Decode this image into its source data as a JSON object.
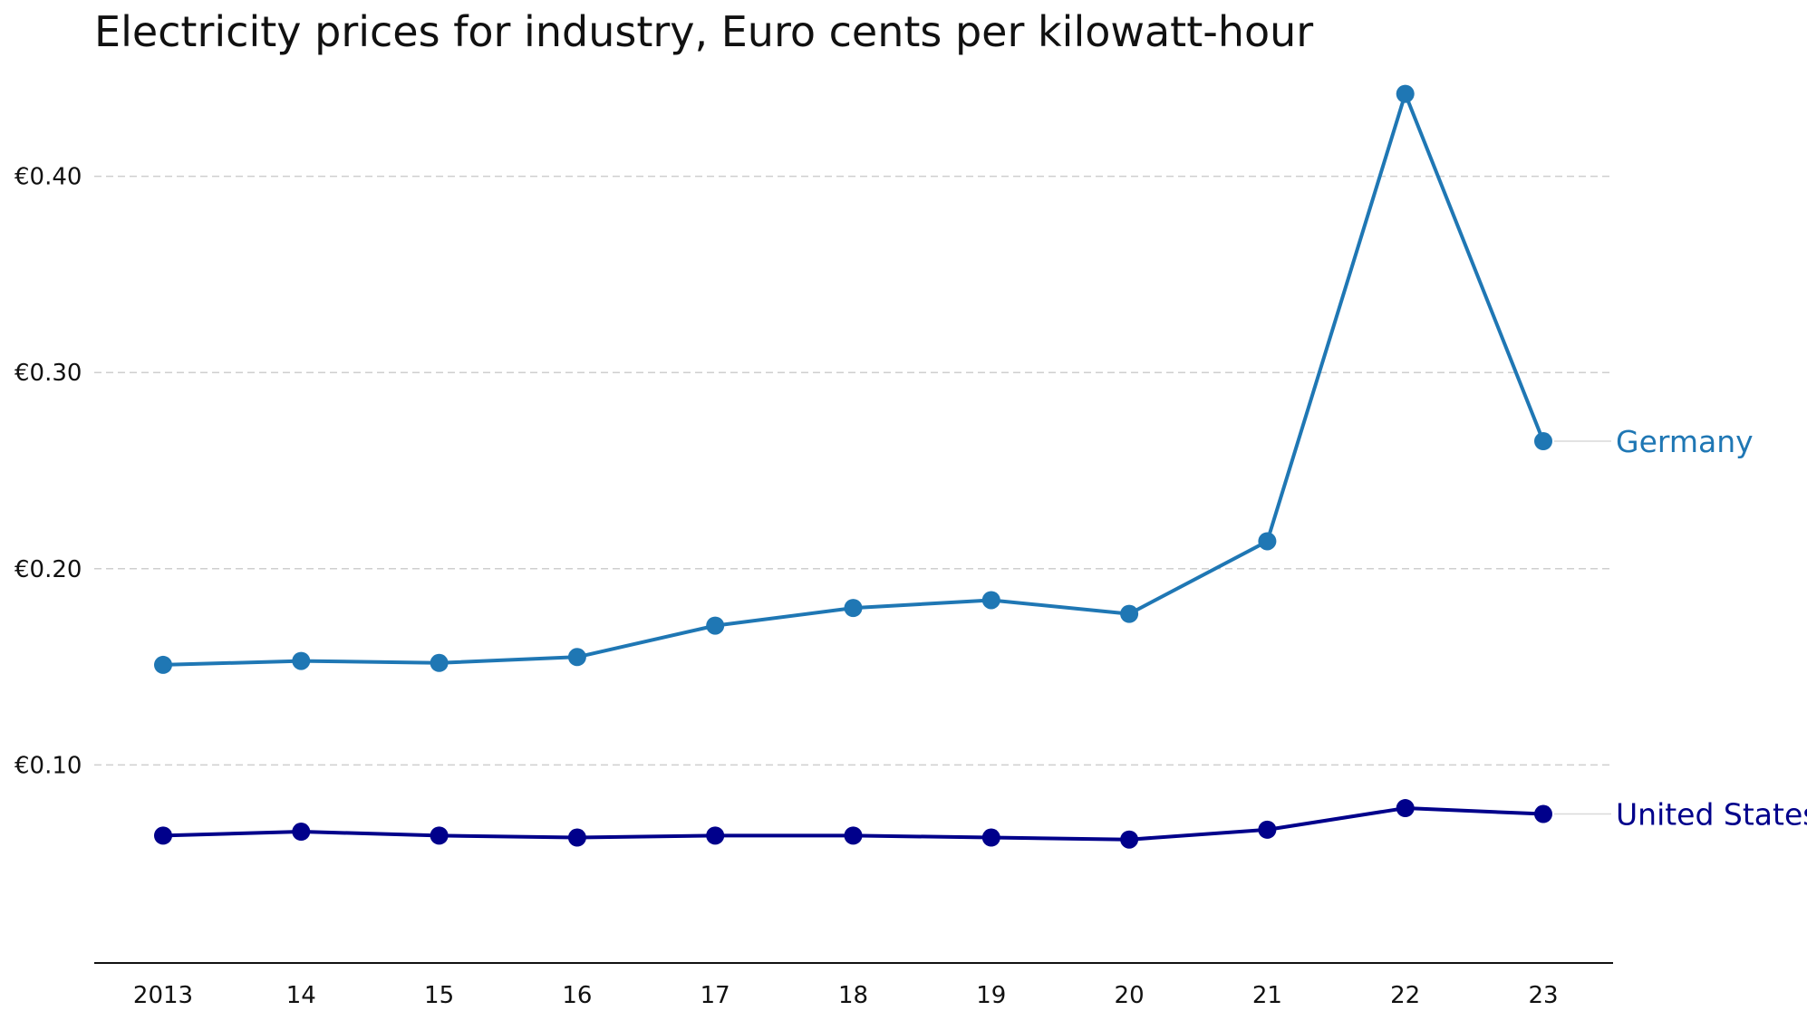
{
  "chart_data": {
    "type": "line",
    "title": "Electricity prices for industry, Euro cents per kilowatt-hour",
    "xlabel": "",
    "ylabel": "",
    "categories": [
      "2013",
      "14",
      "15",
      "16",
      "17",
      "18",
      "19",
      "20",
      "21",
      "22",
      "23"
    ],
    "y_ticks": [
      {
        "value": 0.1,
        "label": "€0.10"
      },
      {
        "value": 0.2,
        "label": "€0.20"
      },
      {
        "value": 0.3,
        "label": "€0.30"
      },
      {
        "value": 0.4,
        "label": "€0.40"
      }
    ],
    "ylim": [
      0,
      0.45
    ],
    "grid": "horizontal-dashed",
    "legend": "inline-right",
    "series": [
      {
        "name": "Germany",
        "color": "#1f77b4",
        "values": [
          0.151,
          0.153,
          0.152,
          0.155,
          0.171,
          0.18,
          0.184,
          0.177,
          0.214,
          0.442,
          0.265
        ]
      },
      {
        "name": "United States",
        "color": "#00008b",
        "values": [
          0.064,
          0.066,
          0.064,
          0.063,
          0.064,
          0.064,
          0.063,
          0.062,
          0.067,
          0.078,
          0.075
        ]
      }
    ]
  }
}
